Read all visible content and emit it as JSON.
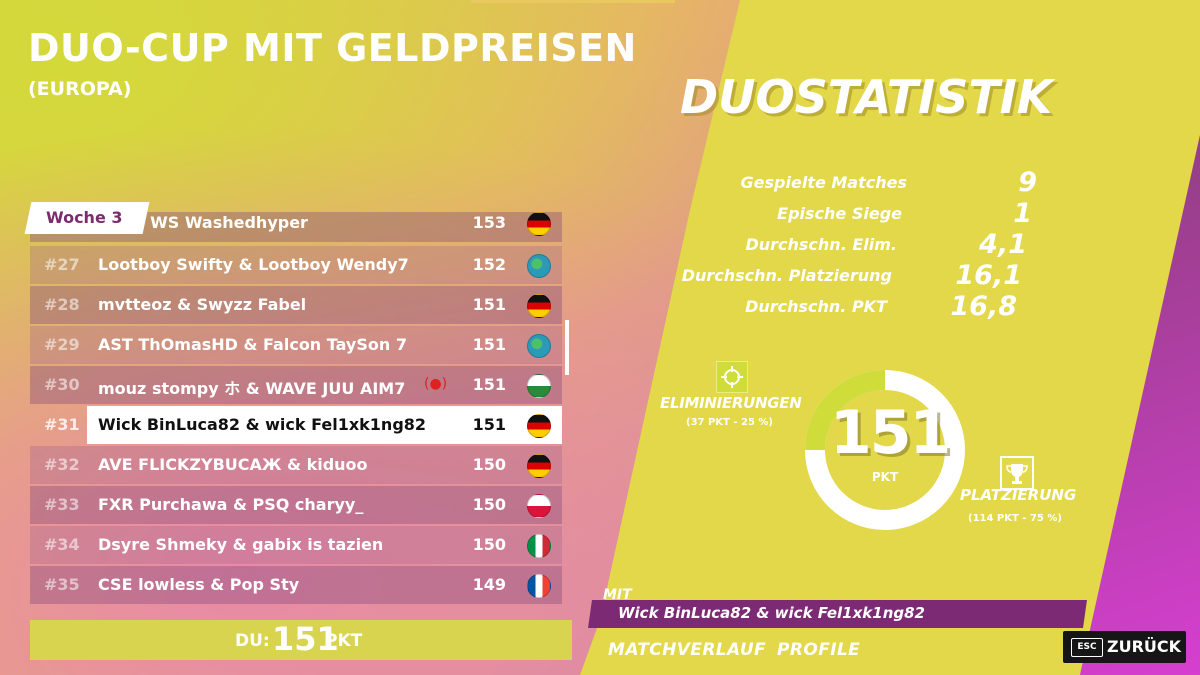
{
  "cup": {
    "title": "DUO-CUP MIT GELDPREISEN",
    "region": "(EUROPA)"
  },
  "leaderboard": {
    "week_tab": "Woche 3",
    "partial_top_row": {
      "names": "…o & WS Washedhyper",
      "points": "153",
      "flag": "de"
    },
    "rows": [
      {
        "rank": "#27",
        "names": "Lootboy Swifty & Lootboy Wendy7",
        "points": "152",
        "flag": "globe"
      },
      {
        "rank": "#28",
        "names": "mvtteoz & Swyzz Fabel",
        "points": "151",
        "flag": "de"
      },
      {
        "rank": "#29",
        "names": "AST ThOmasHD & Falcon TaySon 7",
        "points": "151",
        "flag": "globe"
      },
      {
        "rank": "#30",
        "names": "mouz stompy ホ & WAVE JUU AIM7",
        "points": "151",
        "flag": "wales",
        "recording": true
      },
      {
        "rank": "#31",
        "names": "Wick BinLuca82 & wick Fel1xk1ng82",
        "points": "151",
        "flag": "de",
        "current": true
      },
      {
        "rank": "#32",
        "names": "AVE FLICKZYBUCAЖ & kiduoo",
        "points": "150",
        "flag": "de"
      },
      {
        "rank": "#33",
        "names": "FXR Purchawa & PSQ charyy_",
        "points": "150",
        "flag": "pl"
      },
      {
        "rank": "#34",
        "names": "Dsyre Shmeky & gabix is tazien",
        "points": "150",
        "flag": "it"
      },
      {
        "rank": "#35",
        "names": "CSE lowless & Pop Sty",
        "points": "149",
        "flag": "fr"
      }
    ]
  },
  "you": {
    "label": "DU:",
    "score": "151",
    "unit": "PKT"
  },
  "stats": {
    "title": "DUOSTATISTIK",
    "rows": [
      {
        "label": "Gespielte Matches",
        "value": "9"
      },
      {
        "label": "Epische Siege",
        "value": "1"
      },
      {
        "label": "Durchschn. Elim.",
        "value": "4,1"
      },
      {
        "label": "Durchschn. Platzierung",
        "value": "16,1"
      },
      {
        "label": "Durchschn. PKT",
        "value": "16,8"
      }
    ]
  },
  "ring": {
    "score": "151",
    "unit": "PKT",
    "eliminations_label": "ELIMINIERUNGEN",
    "eliminations_sub": "(37 PKT - 25 %)",
    "eliminations_fraction": 0.25,
    "placement_label": "PLATZIERUNG",
    "placement_sub": "(114 PKT - 75 %)",
    "placement_fraction": 0.75
  },
  "with": {
    "label": "MIT",
    "names": "Wick BinLuca82 & wick Fel1xk1ng82"
  },
  "footer": {
    "match_history": "MATCHVERLAUF",
    "profile": "PROFILE",
    "esc": "ESC",
    "back": "ZURÜCK"
  },
  "colors": {
    "accent_yellow": "#e2d84a",
    "accent_purple": "#7b2a73",
    "ring_green": "#cfdc3a"
  },
  "icons": {
    "eliminations": "crosshair-icon",
    "placement": "trophy-icon",
    "globe": "globe-icon"
  }
}
